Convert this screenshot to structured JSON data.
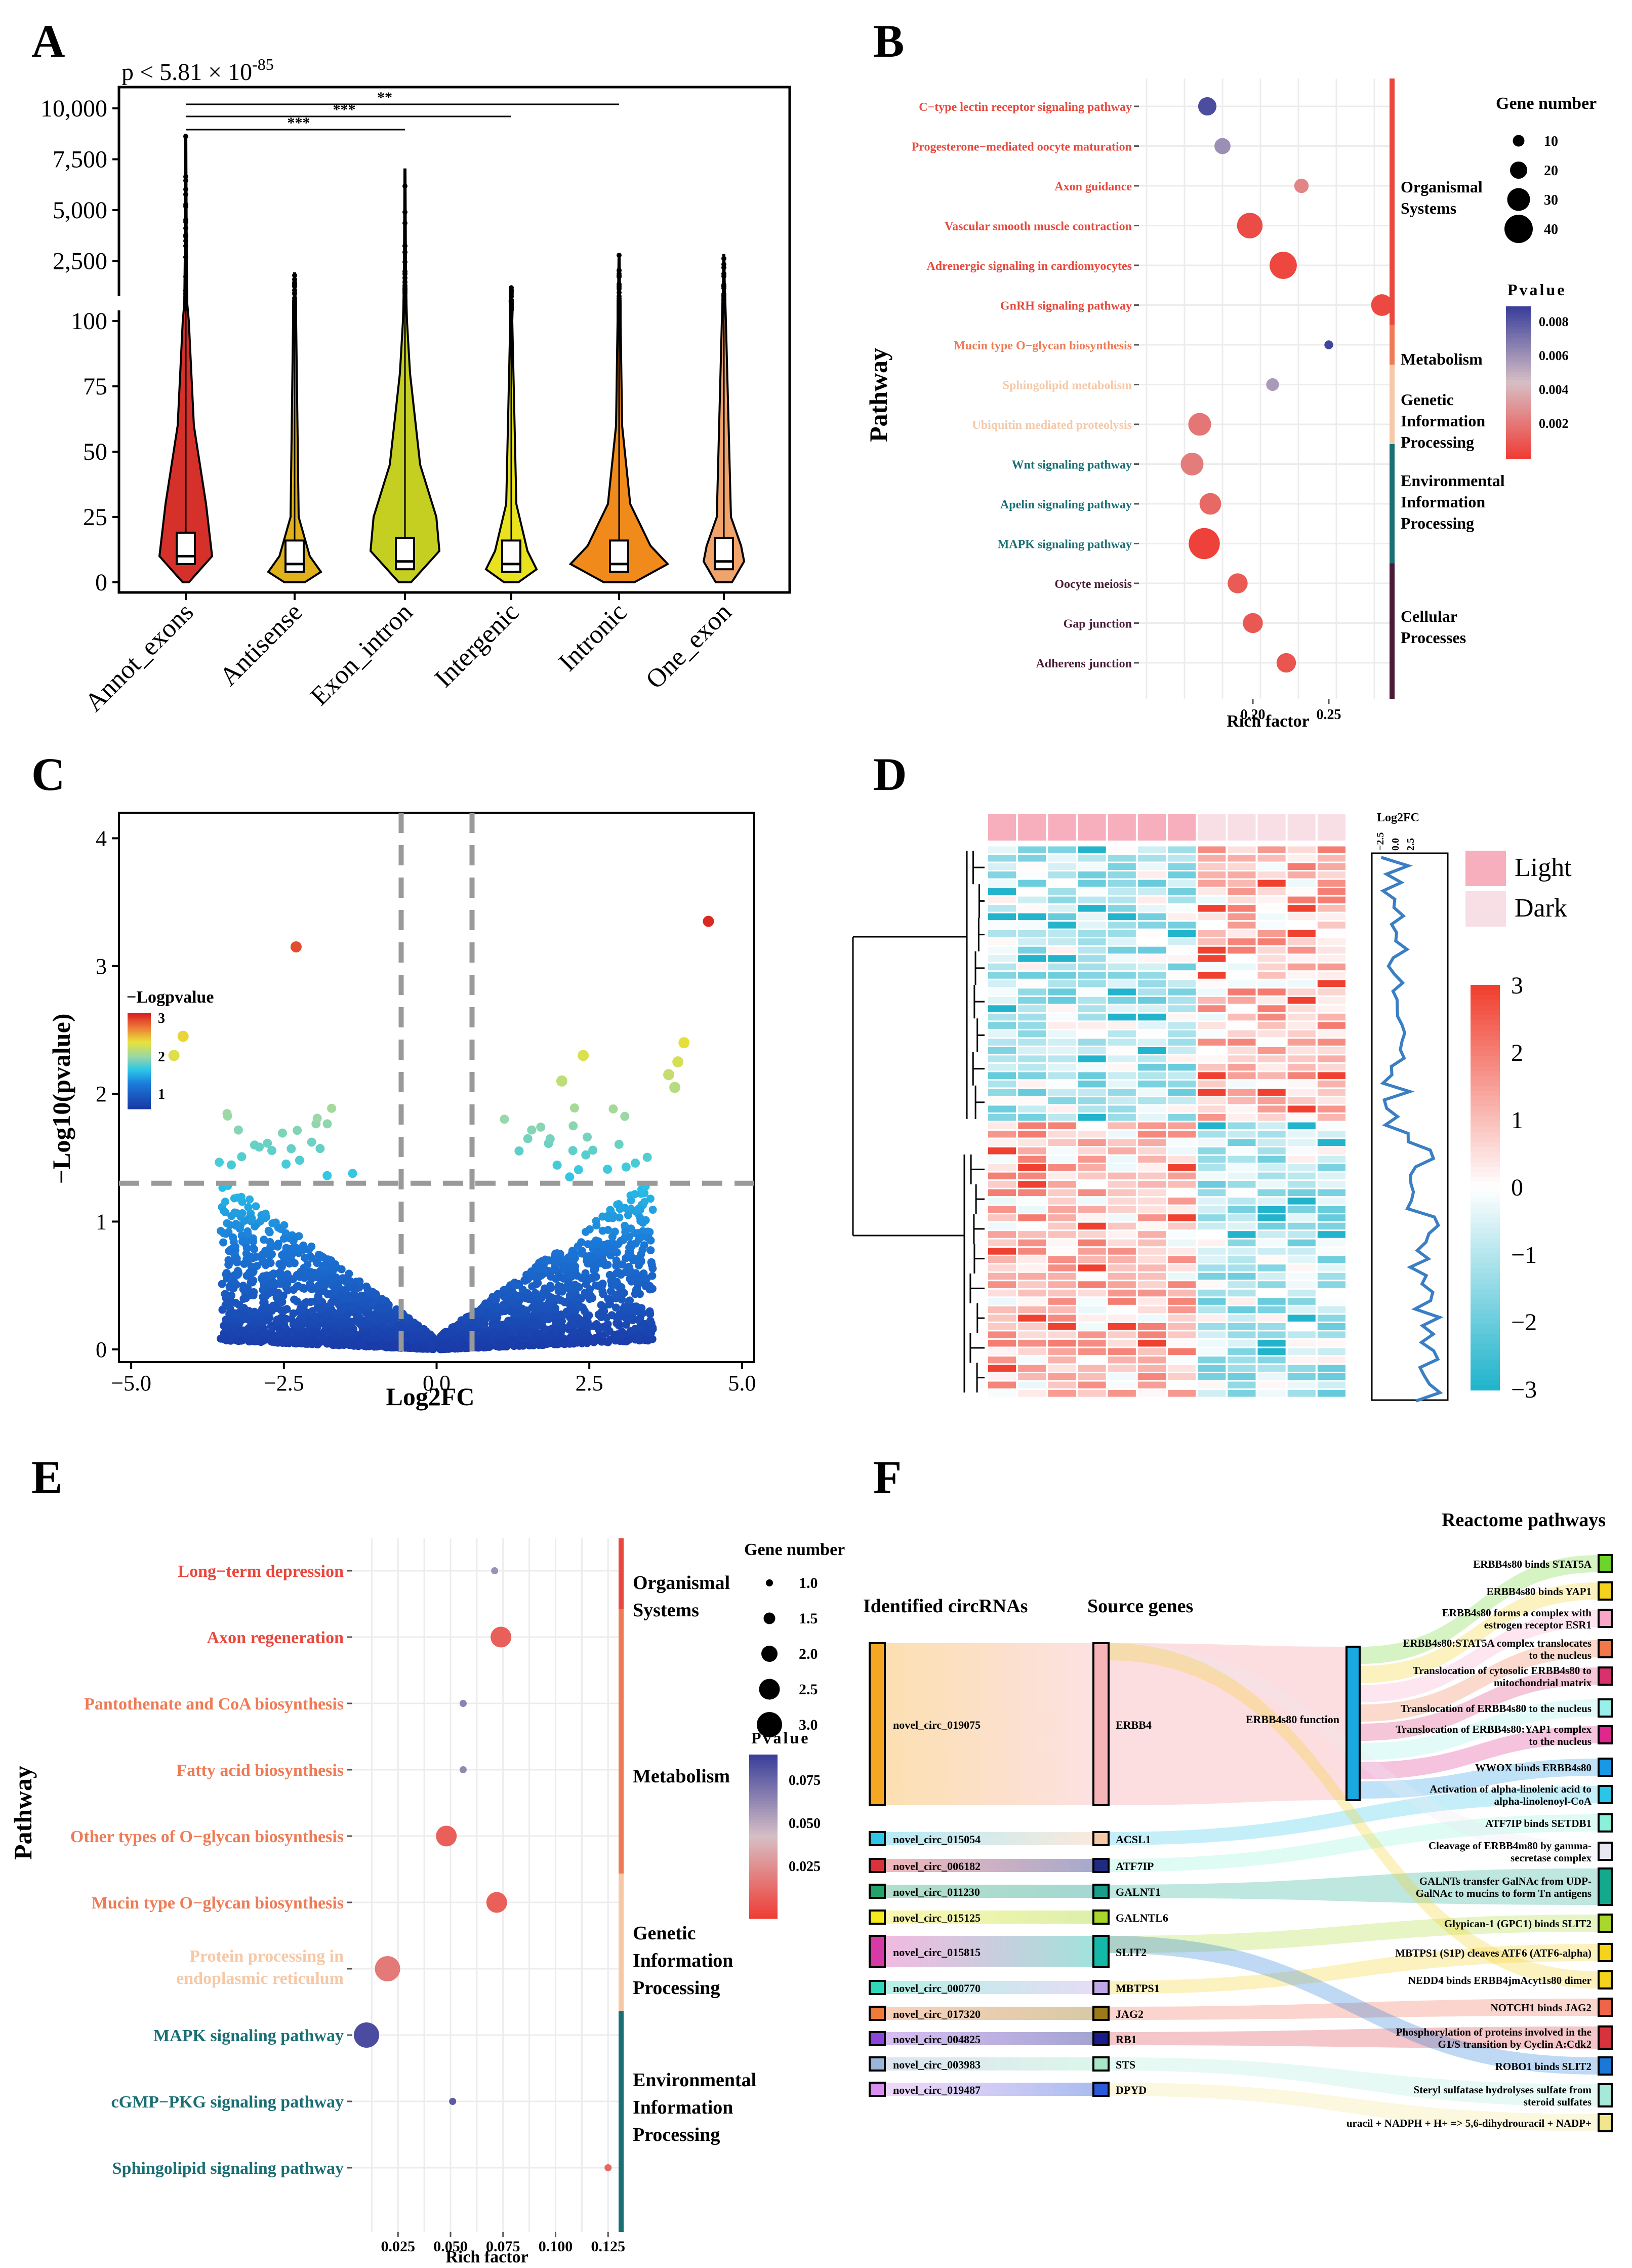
{
  "panels": {
    "A": {
      "label": "A",
      "pvalue_text": "p < 5.81 × 10",
      "pvalue_exp": "-85",
      "sig_marks": [
        "***",
        "***",
        "**"
      ],
      "chart_data": {
        "type": "violin",
        "categories": [
          "Annot_exons",
          "Antisense",
          "Exon_intron",
          "Intergenic",
          "Intronic",
          "One_exon"
        ],
        "colors": [
          "#d6302a",
          "#e0b11a",
          "#c5cf21",
          "#e9e21f",
          "#f08a1a",
          "#f0a36a"
        ],
        "upper_ticks": [
          "2,500",
          "5,000",
          "7,500",
          "10,000"
        ],
        "lower_ticks": [
          "0",
          "25",
          "50",
          "75",
          "100"
        ],
        "ylim_lower": [
          0,
          100
        ],
        "ylim_upper": [
          100,
          10000
        ],
        "medians": [
          10,
          7,
          8,
          7,
          7,
          8
        ],
        "max_values": [
          8700,
          1900,
          7000,
          1200,
          2800,
          2800
        ]
      }
    },
    "B": {
      "label": "B",
      "chart_data": {
        "type": "scatter",
        "xlabel": "Rich factor",
        "ylabel": "Pathway",
        "xticks": [
          "0.20",
          "0.25"
        ],
        "xlim": [
          0.125,
          0.29
        ],
        "pathways": [
          {
            "name": "C−type lectin receptor signaling pathway",
            "rich": 0.17,
            "genes": 22,
            "p": 0.0085,
            "category": "Organismal Systems"
          },
          {
            "name": "Progesterone−mediated oocyte maturation",
            "rich": 0.18,
            "genes": 18,
            "p": 0.0062,
            "category": "Organismal Systems"
          },
          {
            "name": "Axon guidance",
            "rich": 0.232,
            "genes": 15,
            "p": 0.0025,
            "category": "Organismal Systems"
          },
          {
            "name": "Vascular smooth muscle contraction",
            "rich": 0.198,
            "genes": 35,
            "p": 0.0005,
            "category": "Organismal Systems"
          },
          {
            "name": "Adrenergic signaling in cardiomyocytes",
            "rich": 0.22,
            "genes": 38,
            "p": 0.0003,
            "category": "Organismal Systems"
          },
          {
            "name": "GnRH signaling pathway",
            "rich": 0.285,
            "genes": 28,
            "p": 0.0004,
            "category": "Organismal Systems"
          },
          {
            "name": "Mucin type O−glycan biosynthesis",
            "rich": 0.25,
            "genes": 5,
            "p": 0.0088,
            "category": "Metabolism"
          },
          {
            "name": "Sphingolipid metabolism",
            "rich": 0.213,
            "genes": 12,
            "p": 0.0058,
            "category": "Genetic Information Processing"
          },
          {
            "name": "Ubiquitin mediated proteolysis",
            "rich": 0.165,
            "genes": 30,
            "p": 0.002,
            "category": "Genetic Information Processing"
          },
          {
            "name": "Wnt signaling pathway",
            "rich": 0.16,
            "genes": 30,
            "p": 0.0022,
            "category": "Environmental Information Processing"
          },
          {
            "name": "Apelin signaling pathway",
            "rich": 0.172,
            "genes": 28,
            "p": 0.0015,
            "category": "Environmental Information Processing"
          },
          {
            "name": "MAPK signaling pathway",
            "rich": 0.168,
            "genes": 45,
            "p": 0.0001,
            "category": "Environmental Information Processing"
          },
          {
            "name": "Oocyte meiosis",
            "rich": 0.19,
            "genes": 25,
            "p": 0.001,
            "category": "Cellular Processes"
          },
          {
            "name": "Gap junction",
            "rich": 0.2,
            "genes": 25,
            "p": 0.0009,
            "category": "Cellular Processes"
          },
          {
            "name": "Adherens junction",
            "rich": 0.222,
            "genes": 24,
            "p": 0.0008,
            "category": "Cellular Processes"
          }
        ],
        "categories": [
          {
            "name": [
              "Organismal",
              "Systems"
            ],
            "color": "#e8483d"
          },
          {
            "name": [
              "Metabolism"
            ],
            "color": "#ee7b55"
          },
          {
            "name": [
              "Genetic",
              "Information",
              "Processing"
            ],
            "color": "#f6c8a6"
          },
          {
            "name": [
              "Environmental",
              "Information",
              "Processing"
            ],
            "color": "#1a6f74"
          },
          {
            "name": [
              "Cellular",
              "Processes"
            ],
            "color": "#4a1a38"
          }
        ],
        "size_legend_title": "Gene number",
        "size_legend": [
          "10",
          "20",
          "30",
          "40"
        ],
        "color_legend_title": "Pvalue",
        "color_legend": [
          "0.008",
          "0.006",
          "0.004",
          "0.002"
        ]
      }
    },
    "C": {
      "label": "C",
      "chart_data": {
        "type": "scatter",
        "xlabel": "Log2FC",
        "ylabel": "−Log10(pvalue)",
        "xticks": [
          "−5.0",
          "−2.5",
          "0.0",
          "2.5",
          "5.0"
        ],
        "yticks": [
          "0",
          "1",
          "2",
          "3",
          "4"
        ],
        "xlim": [
          -5.2,
          5.2
        ],
        "ylim": [
          -0.1,
          4.2
        ],
        "thresholds": {
          "fc": 0.58,
          "p": 1.3
        },
        "legend_title": "−Logpvalue",
        "legend_ticks": [
          "3",
          "2",
          "1"
        ],
        "highlight_points": [
          [
            -2.3,
            3.15
          ],
          [
            4.45,
            3.35
          ],
          [
            -4.15,
            2.45
          ],
          [
            -4.3,
            2.3
          ],
          [
            4.05,
            2.4
          ],
          [
            3.95,
            2.25
          ],
          [
            3.8,
            2.15
          ],
          [
            3.9,
            2.05
          ],
          [
            2.4,
            2.3
          ],
          [
            2.05,
            2.1
          ]
        ]
      }
    },
    "D": {
      "label": "D",
      "chart_data": {
        "type": "heatmap",
        "rows": 66,
        "columns": 12,
        "groups": [
          "Light",
          "Dark"
        ],
        "group_colors": [
          "#f7aebd",
          "#f8dee5"
        ],
        "color_scale_ticks": [
          "3",
          "2",
          "1",
          "0",
          "−1",
          "−2",
          "−3"
        ],
        "log2fc_title": "Log2FC",
        "log2fc_ticks": [
          "−2.5",
          "0.0",
          "2.5"
        ]
      }
    },
    "E": {
      "label": "E",
      "chart_data": {
        "type": "scatter",
        "xlabel": "Rich factor",
        "ylabel": "Pathway",
        "xticks": [
          "0.025",
          "0.050",
          "0.075",
          "0.100",
          "0.125"
        ],
        "xlim": [
          0.003,
          0.13
        ],
        "pathways": [
          {
            "name": [
              "Long−term depression"
            ],
            "rich": 0.071,
            "genes": 1.0,
            "p": 0.065,
            "category": "Organismal Systems"
          },
          {
            "name": [
              "Axon regeneration"
            ],
            "rich": 0.074,
            "genes": 2.5,
            "p": 0.012,
            "category": "Organismal Systems"
          },
          {
            "name": [
              "Pantothenate and CoA biosynthesis"
            ],
            "rich": 0.056,
            "genes": 1.0,
            "p": 0.07,
            "category": "Metabolism"
          },
          {
            "name": [
              "Fatty acid biosynthesis"
            ],
            "rich": 0.056,
            "genes": 1.0,
            "p": 0.068,
            "category": "Metabolism"
          },
          {
            "name": [
              "Other types of O−glycan biosynthesis"
            ],
            "rich": 0.048,
            "genes": 2.5,
            "p": 0.012,
            "category": "Metabolism"
          },
          {
            "name": [
              "Mucin type O−glycan biosynthesis"
            ],
            "rich": 0.072,
            "genes": 2.5,
            "p": 0.012,
            "category": "Metabolism"
          },
          {
            "name": [
              "Protein processing in",
              "endoplasmic reticulum"
            ],
            "rich": 0.02,
            "genes": 3.0,
            "p": 0.022,
            "category": "Genetic Information Processing"
          },
          {
            "name": [
              "MAPK signaling pathway"
            ],
            "rich": 0.01,
            "genes": 3.0,
            "p": 0.09,
            "category": "Environmental Information Processing"
          },
          {
            "name": [
              "cGMP−PKG signaling pathway"
            ],
            "rich": 0.051,
            "genes": 1.0,
            "p": 0.085,
            "category": "Environmental Information Processing"
          },
          {
            "name": [
              "Sphingolipid signaling pathway"
            ],
            "rich": 0.125,
            "genes": 1.0,
            "p": 0.015,
            "category": "Environmental Information Processing"
          }
        ],
        "categories": [
          {
            "name": [
              "Organismal",
              "Systems"
            ],
            "color": "#e8483d"
          },
          {
            "name": [
              "Metabolism"
            ],
            "color": "#ee7b55"
          },
          {
            "name": [
              "Genetic",
              "Information",
              "Processing"
            ],
            "color": "#f6c8a6"
          },
          {
            "name": [
              "Environmental",
              "Information",
              "Processing"
            ],
            "color": "#1a6f74"
          }
        ],
        "size_legend_title": "Gene number",
        "size_legend": [
          "1.0",
          "1.5",
          "2.0",
          "2.5",
          "3.0"
        ],
        "color_legend_title": "Pvalue",
        "color_legend": [
          "0.075",
          "0.050",
          "0.025"
        ]
      }
    },
    "F": {
      "label": "F",
      "chart_data": {
        "type": "sankey",
        "column_titles": [
          "Identified circRNAs",
          "Source genes",
          "Reactome pathways"
        ],
        "circrnas": [
          {
            "name": "novel_circ_019075",
            "color": "#f5a623"
          },
          {
            "name": "novel_circ_015054",
            "color": "#2ec6e8"
          },
          {
            "name": "novel_circ_006182",
            "color": "#d8323c"
          },
          {
            "name": "novel_circ_011230",
            "color": "#22a36a"
          },
          {
            "name": "novel_circ_015125",
            "color": "#f2ea1c"
          },
          {
            "name": "novel_circ_015815",
            "color": "#d63aa6"
          },
          {
            "name": "novel_circ_000770",
            "color": "#2fd6b8"
          },
          {
            "name": "novel_circ_017320",
            "color": "#ee7b39"
          },
          {
            "name": "novel_circ_004825",
            "color": "#8b45d8"
          },
          {
            "name": "novel_circ_003983",
            "color": "#9ab5d8"
          },
          {
            "name": "novel_circ_019487",
            "color": "#d98ff0"
          }
        ],
        "genes": [
          {
            "name": "ERBB4",
            "color": "#f7b4b8"
          },
          {
            "name": "ACSL1",
            "color": "#f5c8a8"
          },
          {
            "name": "ATF7IP",
            "color": "#1f2a80"
          },
          {
            "name": "GALNT1",
            "color": "#1a9c8a"
          },
          {
            "name": "GALNTL6",
            "color": "#a8d82c"
          },
          {
            "name": "SLIT2",
            "color": "#14b8a6"
          },
          {
            "name": "MBTPS1",
            "color": "#c0a8e8"
          },
          {
            "name": "JAG2",
            "color": "#9a7a1a"
          },
          {
            "name": "RB1",
            "color": "#1a1a8c"
          },
          {
            "name": "STS",
            "color": "#a8e8c8"
          },
          {
            "name": "DPYD",
            "color": "#2a5ad8"
          }
        ],
        "intermediate": "ERBB4s80 function",
        "pathways": [
          {
            "name": [
              "ERBB4s80 binds STAT5A"
            ],
            "color": "#6cd42a"
          },
          {
            "name": [
              "ERBB4s80 binds YAP1"
            ],
            "color": "#f5d21c"
          },
          {
            "name": [
              "ERBB4s80 forms a complex with",
              "estrogen receptor ESR1"
            ],
            "color": "#f7a6c8"
          },
          {
            "name": [
              "ERBB4s80:STAT5A complex translocates",
              "to the nucleus"
            ],
            "color": "#f0784a"
          },
          {
            "name": [
              "Translocation of cytosolic ERBB4s80 to",
              "mitochondrial matrix"
            ],
            "color": "#d8326e"
          },
          {
            "name": [
              "Translocation of ERBB4s80 to the nucleus"
            ],
            "color": "#98f0e8"
          },
          {
            "name": [
              "Translocation of ERBB4s80:YAP1 complex",
              "to the nucleus"
            ],
            "color": "#e0288c"
          },
          {
            "name": [
              "WWOX binds ERBB4s80"
            ],
            "color": "#1a98e8"
          },
          {
            "name": [
              "Activation of alpha-linolenic acid to",
              "alpha-linolenoyl-CoA"
            ],
            "color": "#2ac6e8"
          },
          {
            "name": [
              "ATF7IP binds SETDB1"
            ],
            "color": "#8af0d8"
          },
          {
            "name": [
              "Cleavage of ERBB4m80 by gamma-",
              "secretase complex"
            ],
            "color": "#e8e8f0"
          },
          {
            "name": [
              "GALNTs transfer GalNAc from UDP-",
              "GalNAc to mucins to form Tn antigens"
            ],
            "color": "#14a88c"
          },
          {
            "name": [
              "Glypican-1 (GPC1) binds SLIT2"
            ],
            "color": "#a8d82c"
          },
          {
            "name": [
              "MBTPS1 (S1P) cleaves ATF6 (ATF6-alpha)"
            ],
            "color": "#f5d21c"
          },
          {
            "name": [
              "NEDD4 binds ERBB4jmAcyt1s80 dimer"
            ],
            "color": "#f5d21c"
          },
          {
            "name": [
              "NOTCH1 binds JAG2"
            ],
            "color": "#f0644a"
          },
          {
            "name": [
              "Phosphorylation of proteins involved in the",
              "G1/S transition by Cyclin A:Cdk2"
            ],
            "color": "#d8323c"
          },
          {
            "name": [
              "ROBO1 binds SLIT2"
            ],
            "color": "#1a78d8"
          },
          {
            "name": [
              "Steryl sulfatase hydrolyses sulfate from",
              "steroid sulfates"
            ],
            "color": "#a8e8d8"
          },
          {
            "name": [
              "uracil + NADPH + H+ => 5,6-dihydrouracil + NADP+"
            ],
            "color": "#f0e68c"
          }
        ]
      }
    }
  }
}
